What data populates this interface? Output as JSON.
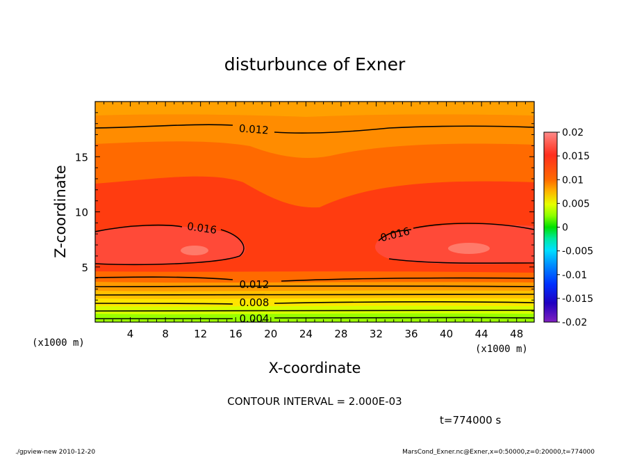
{
  "chart_data": {
    "type": "heatmap",
    "title": "disturbunce of Exner",
    "xlabel": "X-coordinate",
    "ylabel": "Z-coordinate",
    "x_unit": "(x1000 m)",
    "y_unit": "(x1000 m)",
    "xlim": [
      0,
      50
    ],
    "ylim": [
      0,
      20
    ],
    "x_ticks": [
      "4",
      "8",
      "12",
      "16",
      "20",
      "24",
      "28",
      "32",
      "36",
      "40",
      "44",
      "48"
    ],
    "y_ticks": [
      "5",
      "10",
      "15"
    ],
    "colorbar": {
      "levels": [
        "0.02",
        "0.015",
        "0.01",
        "0.005",
        "0",
        "-0.005",
        "-0.01",
        "-0.015",
        "-0.02"
      ],
      "min": -0.02,
      "max": 0.02,
      "interval": 0.002
    },
    "contours": [
      {
        "label": "0.004",
        "value": 0.004
      },
      {
        "label": "0.008",
        "value": 0.008
      },
      {
        "label": "0.012",
        "value": 0.012
      },
      {
        "label": "0.016",
        "value": 0.016
      },
      {
        "label": "0.012",
        "value": 0.012
      }
    ],
    "contour_interval_text": "CONTOUR INTERVAL = 2.000E-03",
    "time_text": "t=774000 s",
    "footer_left": "./gpview-new  2010-12-20",
    "footer_right": "MarsCond_Exner.nc@Exner,x=0:50000,z=0:20000,t=774000"
  }
}
